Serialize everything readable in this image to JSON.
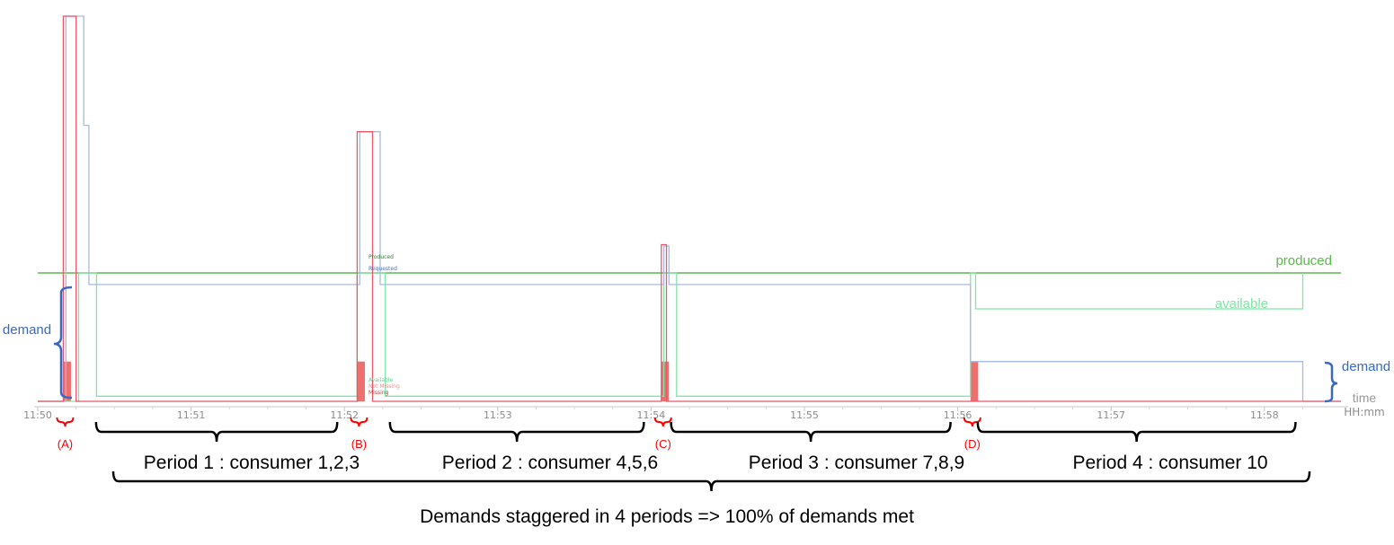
{
  "chart_data": {
    "type": "line",
    "x_unit": "HH:mm",
    "x_ticks": [
      "11:50",
      "11:51",
      "11:52",
      "11:53",
      "11:54",
      "11:55",
      "11:56",
      "11:57",
      "11:58"
    ],
    "xlim": [
      "11:50",
      "11:58:30"
    ],
    "grid": false,
    "series": [
      {
        "name": "produced",
        "color": "#5cb84e",
        "points": [
          [
            "11:50",
            1.0
          ],
          [
            "11:58:30",
            1.0
          ]
        ]
      },
      {
        "name": "available",
        "color": "#7fe6a6",
        "points": [
          [
            "11:50",
            0.0
          ],
          [
            "11:50:16",
            0.0
          ],
          [
            "11:50:16",
            1.0
          ],
          [
            "11:50:23",
            1.0
          ],
          [
            "11:50:23",
            0.04
          ],
          [
            "11:52:05",
            0.04
          ],
          [
            "11:52:05",
            1.0
          ],
          [
            "11:52:16",
            1.0
          ],
          [
            "11:52:16",
            0.04
          ],
          [
            "11:54:05",
            0.04
          ],
          [
            "11:54:05",
            1.0
          ],
          [
            "11:54:10",
            1.0
          ],
          [
            "11:54:10",
            0.04
          ],
          [
            "11:56:05",
            0.04
          ],
          [
            "11:56:05",
            1.0
          ],
          [
            "11:56:07",
            1.0
          ],
          [
            "11:56:07",
            0.72
          ],
          [
            "11:58:15",
            0.72
          ],
          [
            "11:58:15",
            1.0
          ]
        ]
      },
      {
        "name": "demand",
        "color": "#a9bbdc",
        "points": [
          [
            "11:50",
            0.0
          ],
          [
            "11:50:11",
            0.0
          ],
          [
            "11:50:11",
            3.0
          ],
          [
            "11:50:18",
            3.0
          ],
          [
            "11:50:18",
            2.15
          ],
          [
            "11:50:20",
            2.15
          ],
          [
            "11:50:20",
            0.91
          ],
          [
            "11:52:06",
            0.91
          ],
          [
            "11:52:06",
            2.1
          ],
          [
            "11:52:14",
            2.1
          ],
          [
            "11:52:14",
            0.91
          ],
          [
            "11:54:05",
            0.91
          ],
          [
            "11:54:05",
            1.21
          ],
          [
            "11:54:07",
            1.21
          ],
          [
            "11:54:07",
            0.91
          ],
          [
            "11:56:05",
            0.91
          ],
          [
            "11:56:05",
            0.31
          ],
          [
            "11:58:15",
            0.31
          ],
          [
            "11:58:15",
            0.0
          ],
          [
            "11:58:30",
            0.0
          ]
        ]
      },
      {
        "name": "missing",
        "color": "#e8596b",
        "points": [
          [
            "11:50",
            0.0
          ],
          [
            "11:50:10",
            0.0
          ],
          [
            "11:50:10",
            3.0
          ],
          [
            "11:50:15",
            3.0
          ],
          [
            "11:50:15",
            0.0
          ],
          [
            "11:52:05",
            0.0
          ],
          [
            "11:52:05",
            2.1
          ],
          [
            "11:52:11",
            2.1
          ],
          [
            "11:52:11",
            0.0
          ],
          [
            "11:54:04",
            0.0
          ],
          [
            "11:54:04",
            1.22
          ],
          [
            "11:54:06",
            1.22
          ],
          [
            "11:54:06",
            0.0
          ],
          [
            "11:58:30",
            0.0
          ]
        ]
      }
    ],
    "shaded_bars": [
      {
        "from": "11:50:10",
        "to": "11:50:13",
        "value": 0.31
      },
      {
        "from": "11:52:05",
        "to": "11:52:08",
        "value": 0.31
      },
      {
        "from": "11:54:04",
        "to": "11:54:07",
        "value": 0.31
      },
      {
        "from": "11:56:05",
        "to": "11:56:08",
        "value": 0.31
      }
    ],
    "series_labels": {
      "produced": "produced",
      "available": "available",
      "demand_left": "demand",
      "demand_right": "demand",
      "time": "time",
      "x_unit": "HH:mm"
    },
    "mini_legend_top": [
      "Produced",
      "Requested"
    ],
    "mini_legend_bottom": [
      "Available",
      "Not Missing",
      "Missing"
    ],
    "markers": [
      {
        "label": "(A)",
        "at": "11:50:10"
      },
      {
        "label": "(B)",
        "at": "11:52:05"
      },
      {
        "label": "(C)",
        "at": "11:54:04"
      },
      {
        "label": "(D)",
        "at": "11:56:05"
      }
    ],
    "periods": [
      {
        "label": "Period 1 : consumer 1,2,3",
        "from": "11:50:20",
        "to": "11:52:00"
      },
      {
        "label": "Period 2 : consumer 4,5,6",
        "from": "11:52:15",
        "to": "11:54:00"
      },
      {
        "label": "Period 3 : consumer 7,8,9",
        "from": "11:54:05",
        "to": "11:56:00"
      },
      {
        "label": "Period 4 : consumer 10",
        "from": "11:56:05",
        "to": "11:58:15"
      }
    ],
    "summary": "Demands staggered in 4 periods => 100% of demands met"
  }
}
